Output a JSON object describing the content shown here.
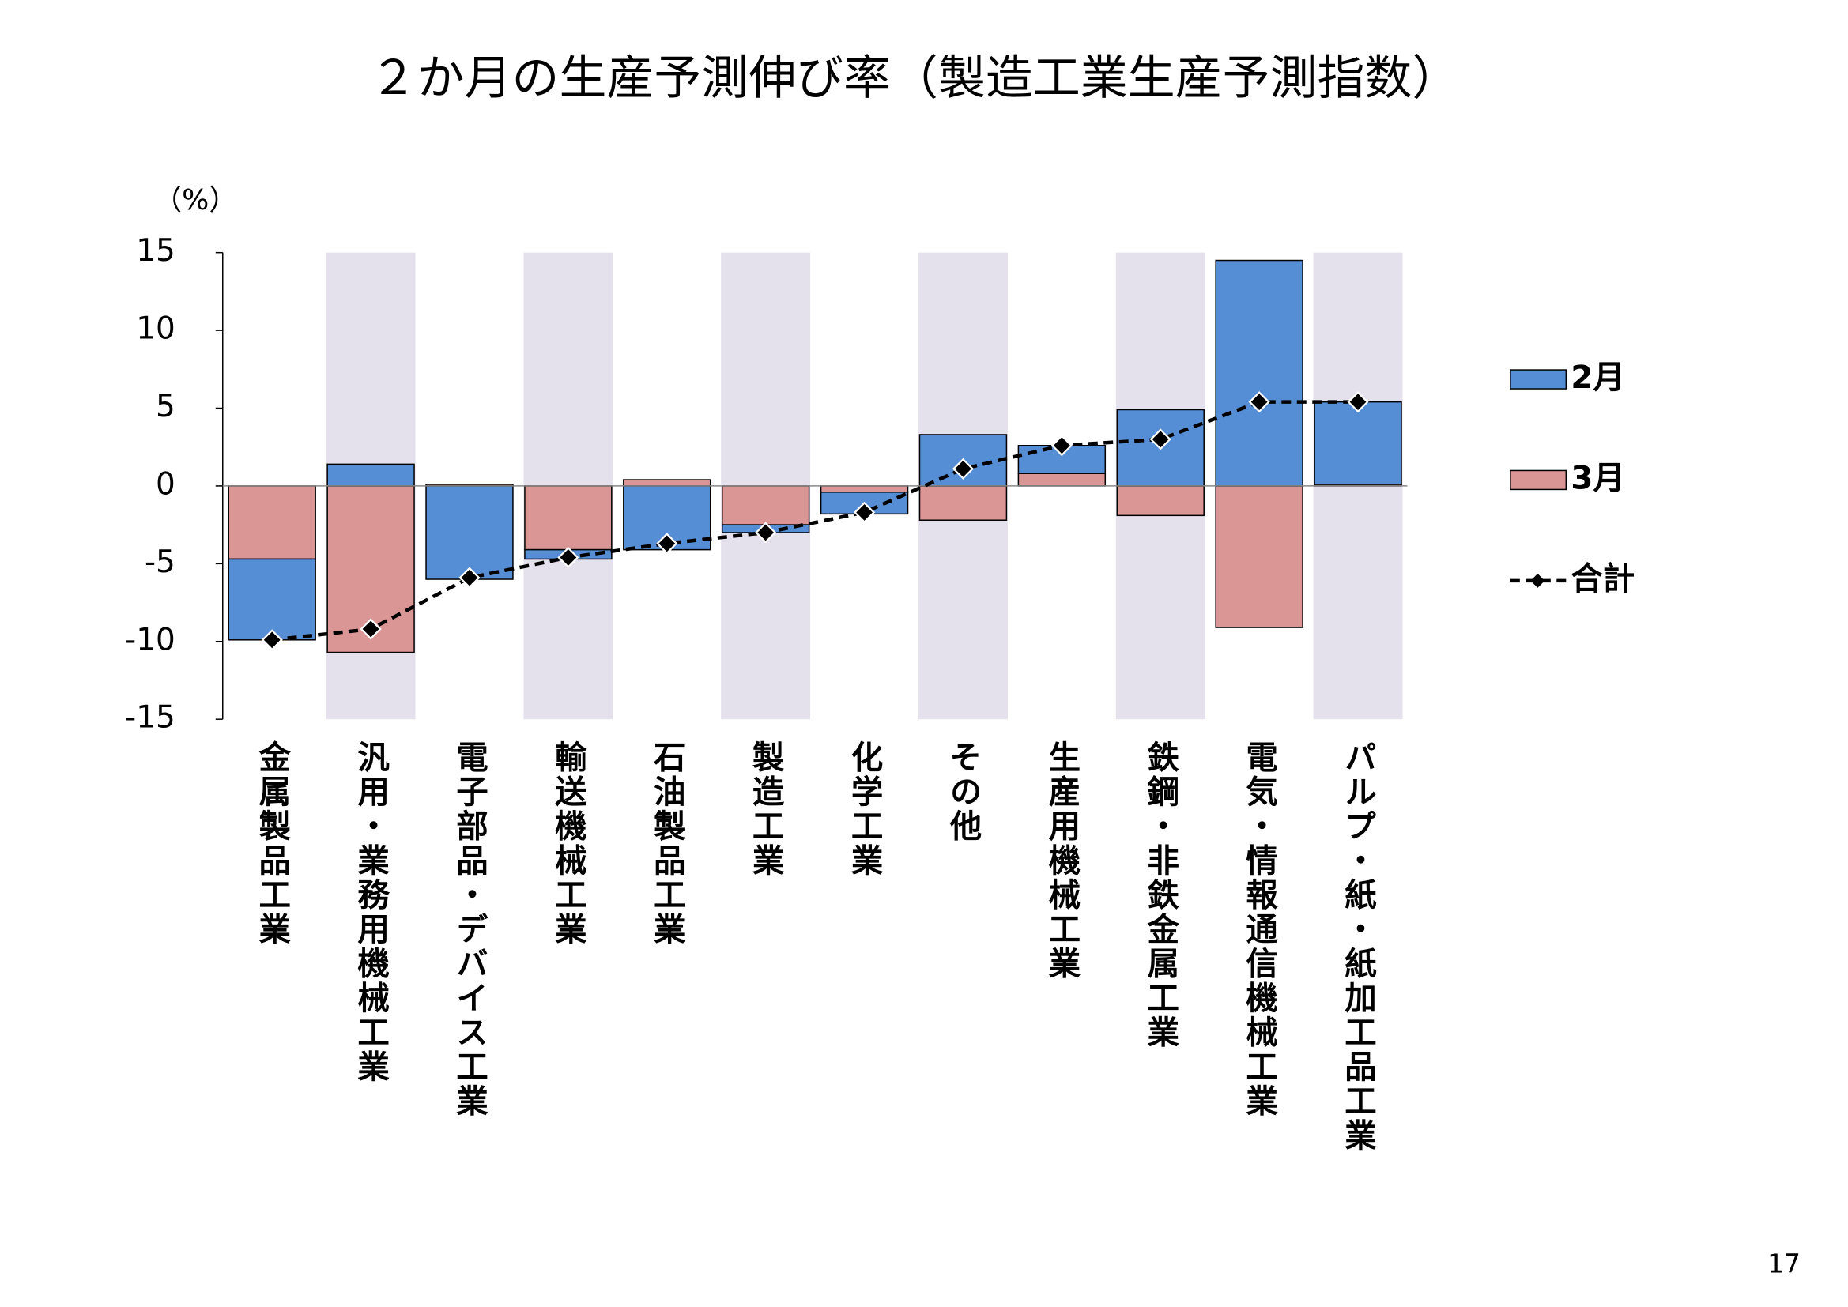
{
  "chart_data": {
    "type": "bar",
    "stacked": true,
    "title": "２か月の生産予測伸び率（製造工業生産予測指数）",
    "y_label": "（%）",
    "categories": [
      "金属製品工業",
      "汎用・業務用機械工業",
      "電子部品・デバイス工業",
      "輸送機械工業",
      "石油製品工業",
      "製造工業",
      "化学工業",
      "その他",
      "生産用機械工業",
      "鉄鋼・非鉄金属工業",
      "電気・情報通信機械工業",
      "パルプ・紙・紙加工品工業"
    ],
    "series": [
      {
        "name": "2月",
        "color": "#558ed5",
        "values": [
          -5.2,
          1.4,
          -6.0,
          -0.6,
          -4.1,
          -0.5,
          -1.4,
          3.3,
          1.8,
          4.9,
          14.5,
          5.3
        ]
      },
      {
        "name": "3月",
        "color": "#d99694",
        "values": [
          -4.7,
          -10.7,
          0.1,
          -4.1,
          0.4,
          -2.5,
          -0.4,
          -2.2,
          0.8,
          -1.9,
          -9.1,
          0.1
        ]
      },
      {
        "name": "合計",
        "type": "line",
        "color": "#000000",
        "values": [
          -9.9,
          -9.2,
          -5.9,
          -4.6,
          -3.7,
          -3.0,
          -1.7,
          1.1,
          2.6,
          3.0,
          5.4,
          5.4
        ]
      }
    ],
    "ylim": [
      -15,
      15
    ],
    "yticks": [
      15,
      10,
      5,
      0,
      -5,
      -10,
      -15
    ],
    "band_color": "#e4e0ec",
    "legend": "right"
  },
  "page_number": "17"
}
